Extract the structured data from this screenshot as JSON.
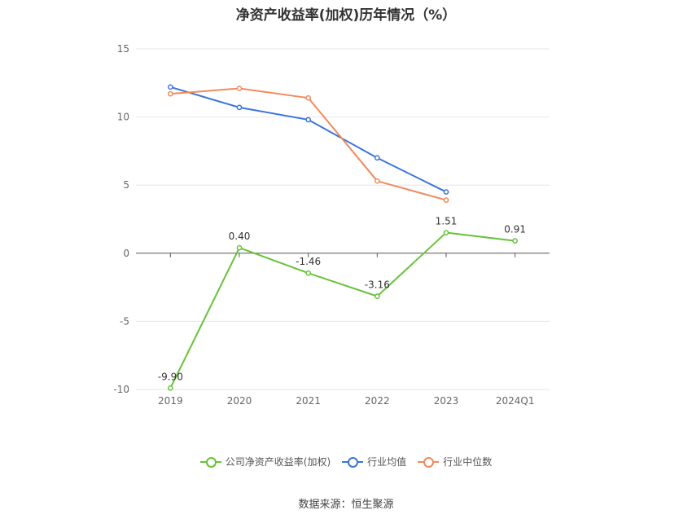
{
  "chart_data": {
    "type": "line",
    "title": "净资产收益率(加权)历年情况（%）",
    "categories": [
      "2019",
      "2020",
      "2021",
      "2022",
      "2023",
      "2024Q1"
    ],
    "ylim": [
      -10,
      15
    ],
    "yticks": [
      15,
      10,
      5,
      0,
      -5,
      -10
    ],
    "grid": true,
    "legend_position": "bottom",
    "series": [
      {
        "name": "公司净资产收益率(加权)",
        "color": "#67c23a",
        "values": [
          -9.9,
          0.4,
          -1.46,
          -3.16,
          1.51,
          0.91
        ],
        "labels": [
          "-9.90",
          "0.40",
          "-1.46",
          "-3.16",
          "1.51",
          "0.91"
        ]
      },
      {
        "name": "行业均值",
        "color": "#3b74d9",
        "values": [
          12.2,
          10.7,
          9.8,
          7.0,
          4.5,
          null
        ]
      },
      {
        "name": "行业中位数",
        "color": "#f08a5d",
        "values": [
          11.7,
          12.1,
          11.4,
          5.3,
          3.9,
          null
        ]
      }
    ]
  },
  "source": "数据来源：恒生聚源"
}
